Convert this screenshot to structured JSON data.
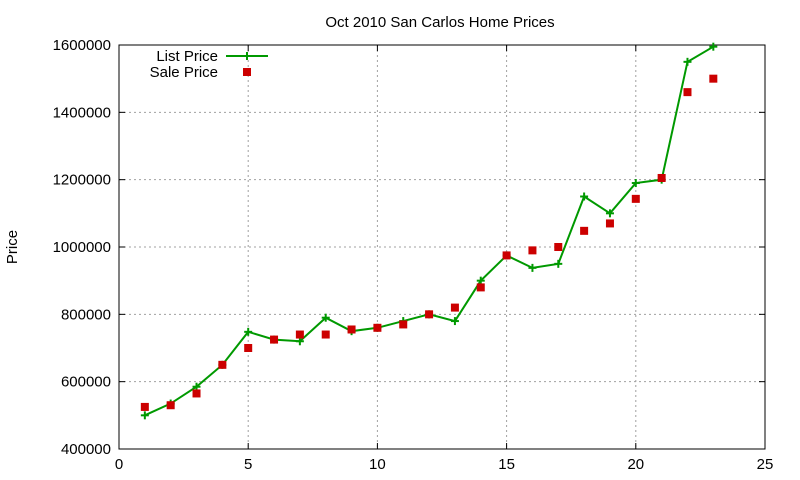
{
  "chart_data": {
    "type": "line",
    "title": "Oct 2010 San Carlos Home Prices",
    "xlabel": "",
    "ylabel": "Price",
    "xlim": [
      0,
      25
    ],
    "ylim": [
      400000,
      1600000
    ],
    "xticks": [
      0,
      5,
      10,
      15,
      20,
      25
    ],
    "yticks": [
      400000,
      600000,
      800000,
      1000000,
      1200000,
      1400000,
      1600000
    ],
    "grid": true,
    "legend_position": "top-left",
    "series": [
      {
        "name": "List Price",
        "style": "line+cross",
        "color": "#009900",
        "x": [
          1,
          2,
          3,
          4,
          5,
          6,
          7,
          8,
          9,
          10,
          11,
          12,
          13,
          14,
          15,
          16,
          17,
          18,
          19,
          20,
          21,
          22,
          23
        ],
        "y": [
          500000,
          535000,
          585000,
          650000,
          748000,
          725000,
          720000,
          790000,
          750000,
          760000,
          780000,
          800000,
          780000,
          900000,
          975000,
          938000,
          950000,
          1150000,
          1100000,
          1190000,
          1200000,
          1550000,
          1595000
        ]
      },
      {
        "name": "Sale Price",
        "style": "square",
        "color": "#cc0000",
        "x": [
          1,
          2,
          3,
          4,
          5,
          6,
          7,
          8,
          9,
          10,
          11,
          12,
          13,
          14,
          15,
          16,
          17,
          18,
          19,
          20,
          21,
          22,
          23
        ],
        "y": [
          525000,
          530000,
          565000,
          650000,
          700000,
          725000,
          740000,
          740000,
          755000,
          760000,
          770000,
          800000,
          820000,
          880000,
          975000,
          990000,
          1000000,
          1048000,
          1070000,
          1143000,
          1205000,
          1460000,
          1500000
        ]
      }
    ]
  }
}
